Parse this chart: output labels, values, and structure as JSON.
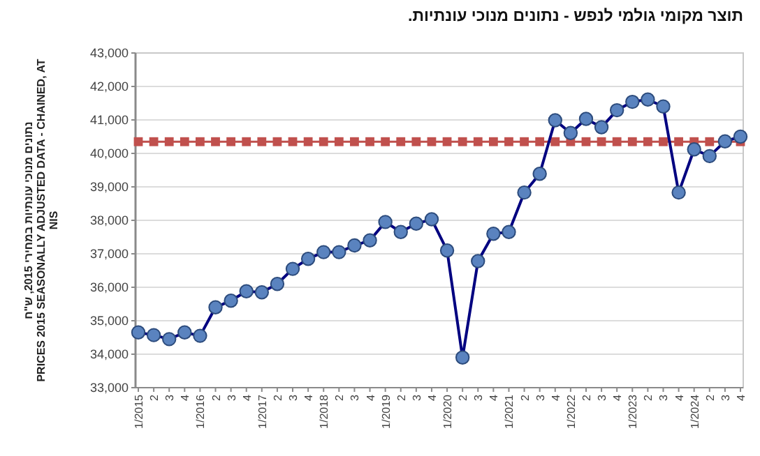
{
  "chart_data": {
    "type": "line",
    "title": "תוצר מקומי גולמי לנפש - נתונים מנוכי עונתיות.",
    "ylabel": "נתונים מנוכי עונתיות במחירי 2015, ש\"ח\nPRICES 2015 SEASONALLY ADJUSTED DATA - CHAINED, AT\nNIS",
    "categories": [
      "1/2015",
      "2",
      "3",
      "4",
      "1/2016",
      "2",
      "3",
      "4",
      "1/2017",
      "2",
      "3",
      "4",
      "1/2018",
      "2",
      "3",
      "4",
      "1/2019",
      "2",
      "3",
      "4",
      "1/2020",
      "2",
      "3",
      "4",
      "1/2021",
      "2",
      "3",
      "4",
      "1/2022",
      "2",
      "3",
      "4",
      "1/2023",
      "2",
      "3",
      "4",
      "1/2024",
      "2",
      "3",
      "4"
    ],
    "series": [
      {
        "color": "#c0504d",
        "marker": "square",
        "values": [
          40350,
          40350,
          40350,
          40350,
          40350,
          40350,
          40350,
          40350,
          40350,
          40350,
          40350,
          40350,
          40350,
          40350,
          40350,
          40350,
          40350,
          40350,
          40350,
          40350,
          40350,
          40350,
          40350,
          40350,
          40350,
          40350,
          40350,
          40350,
          40350,
          40350,
          40350,
          40350,
          40350,
          40350,
          40350,
          40350,
          40350,
          40350,
          40350,
          40350
        ]
      },
      {
        "color": "#000080",
        "marker": "circle",
        "values": [
          34650,
          34570,
          34450,
          34650,
          34550,
          35400,
          35600,
          35880,
          35850,
          36100,
          36550,
          36850,
          37050,
          37050,
          37250,
          37400,
          37950,
          37650,
          37900,
          38030,
          37100,
          33900,
          36780,
          37600,
          37650,
          38830,
          39390,
          40990,
          40610,
          41030,
          40780,
          41290,
          41540,
          41610,
          41400,
          38830,
          40120,
          39920,
          40360,
          40500
        ]
      }
    ],
    "ylim": [
      33000,
      43000
    ],
    "yticks": [
      {
        "value": 33000,
        "label": "33,000"
      },
      {
        "value": 34000,
        "label": "34,000"
      },
      {
        "value": 35000,
        "label": "35,000"
      },
      {
        "value": 36000,
        "label": "36,000"
      },
      {
        "value": 37000,
        "label": "37,000"
      },
      {
        "value": 38000,
        "label": "38,000"
      },
      {
        "value": 39000,
        "label": "39,000"
      },
      {
        "value": 40000,
        "label": "40,000"
      },
      {
        "value": 41000,
        "label": "41,000"
      },
      {
        "value": 42000,
        "label": "42,000"
      },
      {
        "value": 43000,
        "label": "43,000"
      }
    ],
    "grid": "y"
  }
}
